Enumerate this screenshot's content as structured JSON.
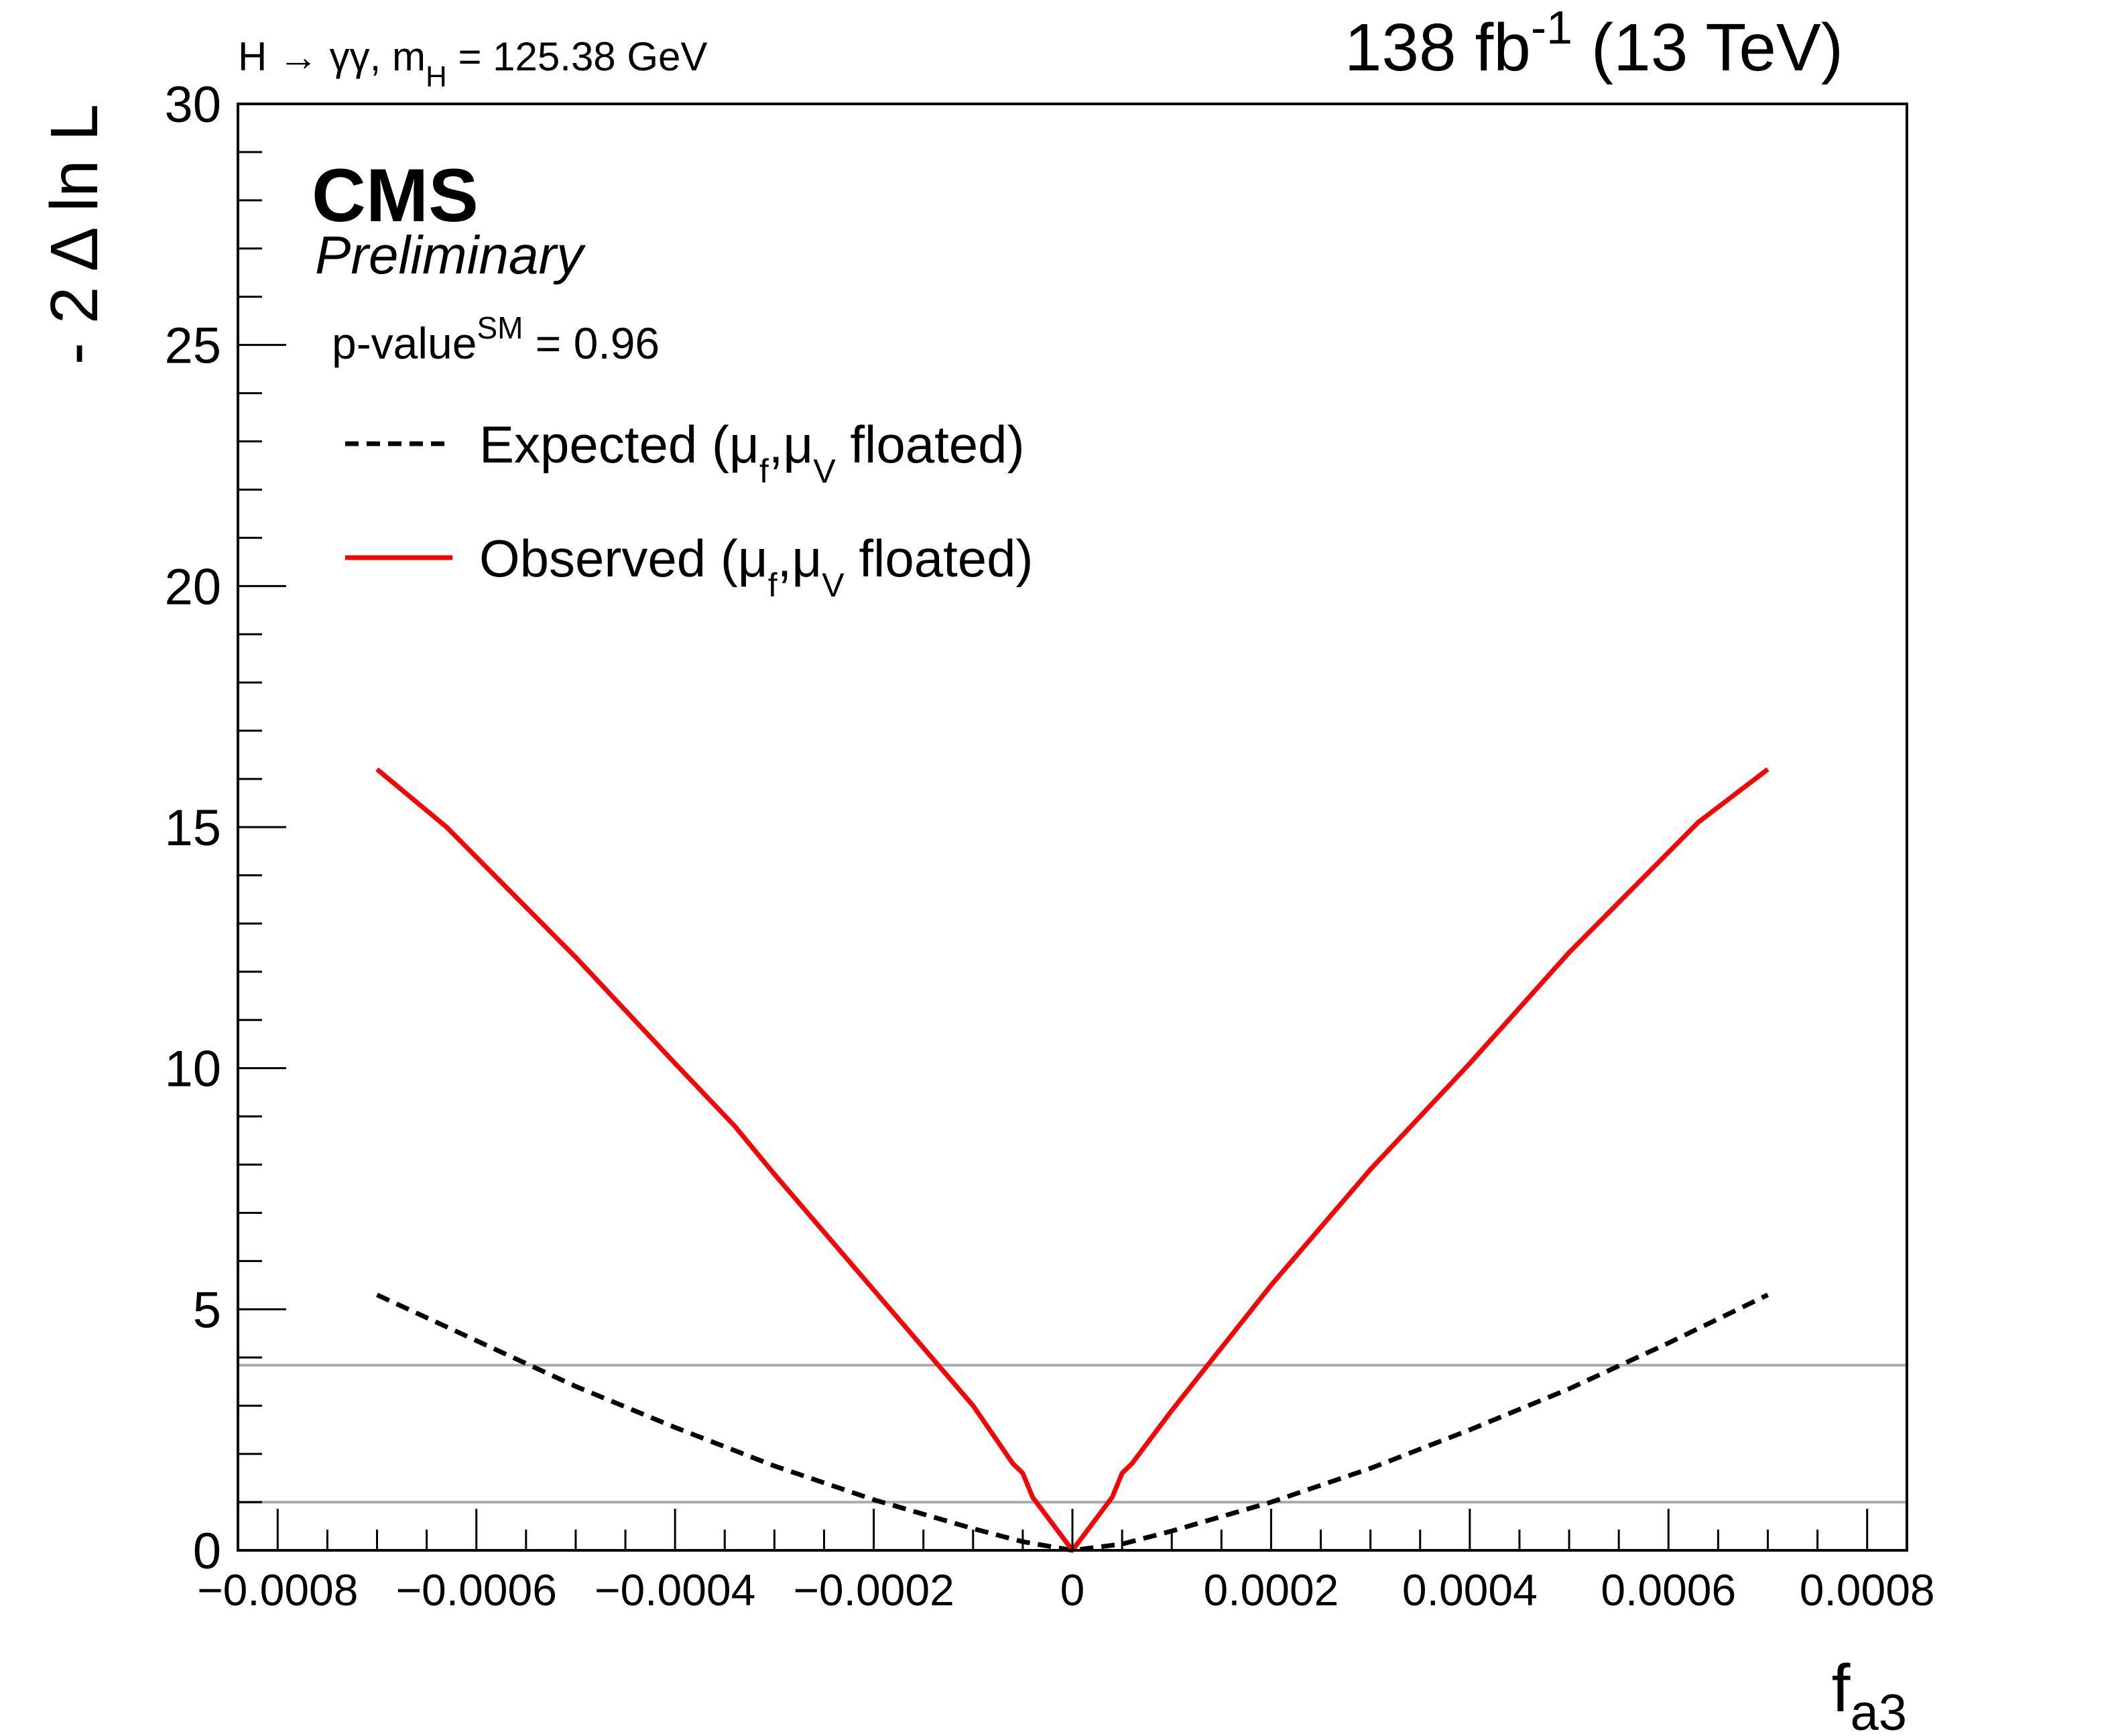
{
  "chart_data": {
    "type": "line",
    "title_left_process": "H → γγ, m",
    "title_left_sub": "H",
    "title_left_value": " = 125.38 GeV",
    "lumi_main": "138 fb",
    "lumi_sup": "-1",
    "lumi_energy": " (13 TeV)",
    "experiment": "CMS",
    "status": "Preliminary",
    "pvalue_main": "p-value",
    "pvalue_sup": "SM",
    "pvalue_value": " = 0.96",
    "ylabel": "- 2 Δ ln L",
    "xlabel_main": "f",
    "xlabel_sub": "a3",
    "xlim": [
      -0.00084,
      0.00084
    ],
    "ylim": [
      0,
      30
    ],
    "x_ticks": [
      -0.0008,
      -0.0006,
      -0.0004,
      -0.0002,
      0,
      0.0002,
      0.0004,
      0.0006,
      0.0008
    ],
    "x_tick_labels": [
      "−0.0008",
      "−0.0006",
      "−0.0004",
      "−0.0002",
      "0",
      "0.0002",
      "0.0004",
      "0.0006",
      "0.0008"
    ],
    "y_ticks": [
      0,
      5,
      10,
      15,
      20,
      25,
      30
    ],
    "y_tick_labels": [
      "0",
      "5",
      "10",
      "15",
      "20",
      "25",
      "30"
    ],
    "reference_lines": [
      1,
      3.84
    ],
    "legend": [
      {
        "series": "Expected",
        "pre": "Expected (μ",
        "sub1": "f",
        "mid": ",μ",
        "sub2": "V",
        "post": " floated)"
      },
      {
        "series": "Observed",
        "pre": "Observed (μ",
        "sub1": "f",
        "mid": ",μ",
        "sub2": "V",
        "post": " floated)"
      }
    ],
    "series": [
      {
        "name": "Expected",
        "color": "#000000",
        "style": "dashed",
        "x": [
          -0.0007,
          -0.0006,
          -0.0005,
          -0.0004,
          -0.0003,
          -0.0002,
          -0.0001,
          -5e-05,
          0,
          5e-05,
          0.0001,
          0.0002,
          0.0003,
          0.0004,
          0.0005,
          0.0006,
          0.0007
        ],
        "y": [
          5.3,
          4.35,
          3.4,
          2.55,
          1.75,
          1.05,
          0.45,
          0.18,
          0,
          0.13,
          0.4,
          1.0,
          1.7,
          2.5,
          3.35,
          4.3,
          5.3
        ]
      },
      {
        "name": "Observed",
        "color": "#ff0000",
        "style": "solid",
        "x": [
          -0.0007,
          -0.00063,
          -0.0005,
          -0.0004,
          -0.00034,
          -0.0003,
          -0.0002,
          -0.0001,
          -6e-05,
          -5e-05,
          -4e-05,
          0,
          4e-05,
          5e-05,
          6e-05,
          0.0001,
          0.0002,
          0.0003,
          0.00035,
          0.0004,
          0.0005,
          0.00063,
          0.0007
        ],
        "y": [
          16.2,
          15.0,
          12.3,
          10.1,
          8.8,
          7.8,
          5.4,
          3.0,
          1.8,
          1.6,
          1.1,
          0,
          1.1,
          1.6,
          1.8,
          2.9,
          5.5,
          7.9,
          9.0,
          10.1,
          12.4,
          15.1,
          16.2
        ]
      }
    ]
  }
}
